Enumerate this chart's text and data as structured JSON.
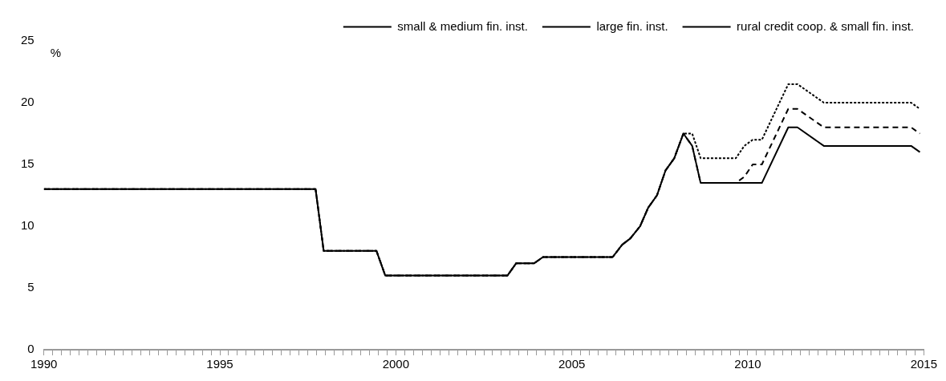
{
  "chart_data": {
    "type": "line",
    "ylabel": "%",
    "legend": "top",
    "grid": false,
    "marker": "none",
    "x": [
      1990,
      1997.72,
      1997.95,
      1999.45,
      1999.7,
      2003.17,
      2003.42,
      2003.93,
      2004.18,
      2006.16,
      2006.43,
      2006.66,
      2006.94,
      2007.17,
      2007.42,
      2007.66,
      2007.91,
      2008.17,
      2008.42,
      2008.66,
      2009.66,
      2009.9,
      2010.14,
      2010.4,
      2011.15,
      2011.41,
      2012.16,
      2014.64,
      2014.89
    ],
    "series": [
      {
        "name": "small & medium fin. inst.",
        "color": "#000000",
        "line_style": "dashed",
        "values": [
          13,
          13,
          8,
          8,
          6,
          6,
          7,
          7,
          7.5,
          7.5,
          8.5,
          9,
          10,
          11.5,
          12.5,
          14.5,
          15.5,
          17.5,
          16.5,
          13.5,
          13.5,
          14,
          15,
          15,
          19.5,
          19.5,
          18,
          18,
          17.5
        ]
      },
      {
        "name": "large fin. inst.",
        "color": "#000000",
        "line_style": "dotted",
        "values": [
          13,
          13,
          8,
          8,
          6,
          6,
          7,
          7,
          7.5,
          7.5,
          8.5,
          9,
          10,
          11.5,
          12.5,
          14.5,
          15.5,
          17.5,
          17.5,
          15.5,
          15.5,
          16.5,
          17,
          17,
          21.5,
          21.5,
          20,
          20,
          19.5
        ]
      },
      {
        "name": "rural credit coop. & small fin. inst.",
        "color": "#000000",
        "line_style": "solid",
        "values": [
          13,
          13,
          8,
          8,
          6,
          6,
          7,
          7,
          7.5,
          7.5,
          8.5,
          9,
          10,
          11.5,
          12.5,
          14.5,
          15.5,
          17.5,
          16.5,
          13.5,
          13.5,
          13.5,
          13.5,
          13.5,
          18,
          18,
          16.5,
          16.5,
          16
        ]
      }
    ],
    "xlim": [
      1990,
      2015
    ],
    "xticks": [
      1990,
      {
        "value": 1990.25,
        "label": null
      },
      {
        "value": 1990.5,
        "label": null
      },
      {
        "value": 1990.75,
        "label": null
      },
      {
        "value": 1991,
        "label": null
      },
      {
        "value": 1991.25,
        "label": null
      },
      {
        "value": 1991.5,
        "label": null
      },
      {
        "value": 1991.75,
        "label": null
      },
      {
        "value": 1992,
        "label": null
      },
      {
        "value": 1992.25,
        "label": null
      },
      {
        "value": 1992.5,
        "label": null
      },
      {
        "value": 1992.75,
        "label": null
      },
      {
        "value": 1993,
        "label": null
      },
      {
        "value": 1993.25,
        "label": null
      },
      {
        "value": 1993.5,
        "label": null
      },
      {
        "value": 1993.75,
        "label": null
      },
      {
        "value": 1994,
        "label": null
      },
      {
        "value": 1994.25,
        "label": null
      },
      {
        "value": 1994.5,
        "label": null
      },
      {
        "value": 1994.75,
        "label": null
      },
      1995,
      {
        "value": 1995.25,
        "label": null
      },
      {
        "value": 1995.5,
        "label": null
      },
      {
        "value": 1995.75,
        "label": null
      },
      {
        "value": 1996,
        "label": null
      },
      {
        "value": 1996.25,
        "label": null
      },
      {
        "value": 1996.5,
        "label": null
      },
      {
        "value": 1996.75,
        "label": null
      },
      {
        "value": 1997,
        "label": null
      },
      {
        "value": 1997.25,
        "label": null
      },
      {
        "value": 1997.5,
        "label": null
      },
      {
        "value": 1997.75,
        "label": null
      },
      {
        "value": 1998,
        "label": null
      },
      {
        "value": 1998.25,
        "label": null
      },
      {
        "value": 1998.5,
        "label": null
      },
      {
        "value": 1998.75,
        "label": null
      },
      {
        "value": 1999,
        "label": null
      },
      {
        "value": 1999.25,
        "label": null
      },
      {
        "value": 1999.5,
        "label": null
      },
      {
        "value": 1999.75,
        "label": null
      },
      2000,
      {
        "value": 2000.25,
        "label": null
      },
      {
        "value": 2000.5,
        "label": null
      },
      {
        "value": 2000.75,
        "label": null
      },
      {
        "value": 2001,
        "label": null
      },
      {
        "value": 2001.25,
        "label": null
      },
      {
        "value": 2001.5,
        "label": null
      },
      {
        "value": 2001.75,
        "label": null
      },
      {
        "value": 2002,
        "label": null
      },
      {
        "value": 2002.25,
        "label": null
      },
      {
        "value": 2002.5,
        "label": null
      },
      {
        "value": 2002.75,
        "label": null
      },
      {
        "value": 2003,
        "label": null
      },
      {
        "value": 2003.25,
        "label": null
      },
      {
        "value": 2003.5,
        "label": null
      },
      {
        "value": 2003.75,
        "label": null
      },
      {
        "value": 2004,
        "label": null
      },
      {
        "value": 2004.25,
        "label": null
      },
      {
        "value": 2004.5,
        "label": null
      },
      {
        "value": 2004.75,
        "label": null
      },
      2005,
      {
        "value": 2005.25,
        "label": null
      },
      {
        "value": 2005.5,
        "label": null
      },
      {
        "value": 2005.75,
        "label": null
      },
      {
        "value": 2006,
        "label": null
      },
      {
        "value": 2006.25,
        "label": null
      },
      {
        "value": 2006.5,
        "label": null
      },
      {
        "value": 2006.75,
        "label": null
      },
      {
        "value": 2007,
        "label": null
      },
      {
        "value": 2007.25,
        "label": null
      },
      {
        "value": 2007.5,
        "label": null
      },
      {
        "value": 2007.75,
        "label": null
      },
      {
        "value": 2008,
        "label": null
      },
      {
        "value": 2008.25,
        "label": null
      },
      {
        "value": 2008.5,
        "label": null
      },
      {
        "value": 2008.75,
        "label": null
      },
      {
        "value": 2009,
        "label": null
      },
      {
        "value": 2009.25,
        "label": null
      },
      {
        "value": 2009.5,
        "label": null
      },
      {
        "value": 2009.75,
        "label": null
      },
      2010,
      {
        "value": 2010.25,
        "label": null
      },
      {
        "value": 2010.5,
        "label": null
      },
      {
        "value": 2010.75,
        "label": null
      },
      {
        "value": 2011,
        "label": null
      },
      {
        "value": 2011.25,
        "label": null
      },
      {
        "value": 2011.5,
        "label": null
      },
      {
        "value": 2011.75,
        "label": null
      },
      {
        "value": 2012,
        "label": null
      },
      {
        "value": 2012.25,
        "label": null
      },
      {
        "value": 2012.5,
        "label": null
      },
      {
        "value": 2012.75,
        "label": null
      },
      {
        "value": 2013,
        "label": null
      },
      {
        "value": 2013.25,
        "label": null
      },
      {
        "value": 2013.5,
        "label": null
      },
      {
        "value": 2013.75,
        "label": null
      },
      {
        "value": 2014,
        "label": null
      },
      {
        "value": 2014.25,
        "label": null
      },
      {
        "value": 2014.5,
        "label": null
      },
      {
        "value": 2014.75,
        "label": null
      },
      2015
    ],
    "ylim": [
      0,
      25
    ],
    "yticks": [
      0,
      5,
      10,
      15,
      20,
      25
    ]
  }
}
